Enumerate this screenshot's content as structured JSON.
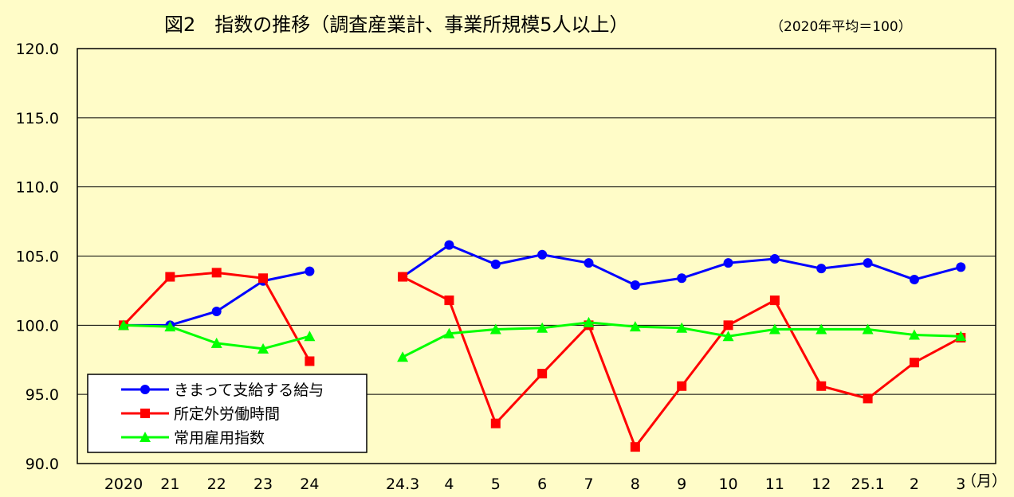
{
  "chart_data": {
    "type": "line",
    "title": "図2　指数の推移（調査産業計、事業所規模5人以上）",
    "subtitle": "（2020年平均＝100）",
    "x_unit": "（月）",
    "ylim": [
      90,
      120
    ],
    "yticks": [
      "120.0",
      "115.0",
      "110.0",
      "105.0",
      "100.0",
      "95.0",
      "90.0"
    ],
    "grid": true,
    "legend_position": "lower-left",
    "categories": [
      "2020",
      "21",
      "22",
      "23",
      "24",
      "",
      "24.3",
      "4",
      "5",
      "6",
      "7",
      "8",
      "9",
      "10",
      "11",
      "12",
      "25.1",
      "2",
      "3"
    ],
    "series": [
      {
        "name": "きまって支給する給与",
        "color": "#0000ff",
        "marker": "circle",
        "values": [
          100.0,
          100.0,
          101.0,
          103.2,
          103.9,
          null,
          103.5,
          105.8,
          104.4,
          105.1,
          104.5,
          102.9,
          103.4,
          104.5,
          104.8,
          104.1,
          104.5,
          103.3,
          104.2
        ]
      },
      {
        "name": "所定外労働時間",
        "color": "#ff0000",
        "marker": "square",
        "values": [
          100.0,
          103.5,
          103.8,
          103.4,
          97.4,
          null,
          103.5,
          101.8,
          92.9,
          96.5,
          100.0,
          91.2,
          95.6,
          100.0,
          101.8,
          95.6,
          94.7,
          97.3,
          99.1
        ]
      },
      {
        "name": "常用雇用指数",
        "color": "#00ff00",
        "marker": "triangle",
        "values": [
          100.0,
          99.9,
          98.7,
          98.3,
          99.2,
          null,
          97.7,
          99.4,
          99.7,
          99.8,
          100.2,
          99.9,
          99.8,
          99.2,
          99.7,
          99.7,
          99.7,
          99.3,
          99.2
        ]
      }
    ]
  }
}
